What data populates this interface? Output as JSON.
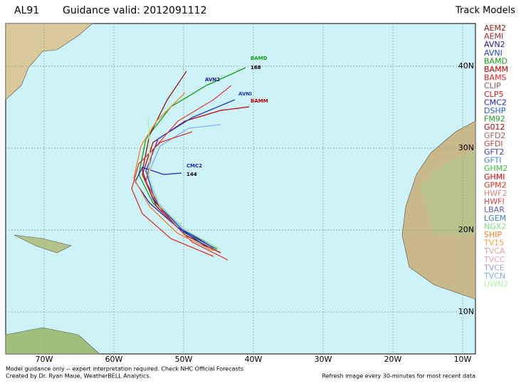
{
  "header": {
    "storm": "AL91",
    "valid": "Guidance valid: 2012091112"
  },
  "legend": {
    "title": "Track Models",
    "items": [
      {
        "name": "AEM2",
        "color": "#8b1a1a"
      },
      {
        "name": "AEMI",
        "color": "#a52a2a"
      },
      {
        "name": "AVN2",
        "color": "#1a1aa0"
      },
      {
        "name": "AVNI",
        "color": "#2040d0"
      },
      {
        "name": "BAMD",
        "color": "#10a010"
      },
      {
        "name": "BAMM",
        "color": "#c00000"
      },
      {
        "name": "BAMS",
        "color": "#e02020"
      },
      {
        "name": "CLIP",
        "color": "#806060"
      },
      {
        "name": "CLP5",
        "color": "#d02020"
      },
      {
        "name": "CMC2",
        "color": "#2020c0"
      },
      {
        "name": "DSHP",
        "color": "#2060e0"
      },
      {
        "name": "FM92",
        "color": "#20a020"
      },
      {
        "name": "G012",
        "color": "#c00000"
      },
      {
        "name": "GFD2",
        "color": "#a06060"
      },
      {
        "name": "GFDI",
        "color": "#c04040"
      },
      {
        "name": "GFT2",
        "color": "#4040c0"
      },
      {
        "name": "GFTI",
        "color": "#4080e0"
      },
      {
        "name": "GHM2",
        "color": "#40c040"
      },
      {
        "name": "GHMI",
        "color": "#e00000"
      },
      {
        "name": "GPM2",
        "color": "#e03020"
      },
      {
        "name": "HWF2",
        "color": "#e08080"
      },
      {
        "name": "HWFI",
        "color": "#e04040"
      },
      {
        "name": "LBAR",
        "color": "#6060c0"
      },
      {
        "name": "LGEM",
        "color": "#4080c0"
      },
      {
        "name": "NGX2",
        "color": "#80e080"
      },
      {
        "name": "SHIP",
        "color": "#f08020"
      },
      {
        "name": "TV15",
        "color": "#f0a040"
      },
      {
        "name": "TVCA",
        "color": "#e0a0a0"
      },
      {
        "name": "TVCC",
        "color": "#f0a0b0"
      },
      {
        "name": "TVCE",
        "color": "#a0a0e0"
      },
      {
        "name": "TVCN",
        "color": "#80b0f0"
      },
      {
        "name": "UWN2",
        "color": "#b0f0a0"
      }
    ]
  },
  "map": {
    "lon_labels": [
      "70W",
      "60W",
      "50W",
      "40W",
      "30W",
      "20W",
      "10W"
    ],
    "lat_labels": [
      "40N",
      "30N",
      "20N",
      "10N"
    ],
    "annotations": [
      "BAMD",
      "168",
      "BAMM",
      "CMC2",
      "144",
      "AVN2",
      "AVNI"
    ]
  },
  "footer": {
    "left1": "Model guidance only -- expert interpretation required.  Check NHC Official Forecasts",
    "left2": "Created by Dr. Ryan Maue, WeatherBELL Analytics.",
    "right": "Refresh image every 30-minutes for most recent data"
  }
}
